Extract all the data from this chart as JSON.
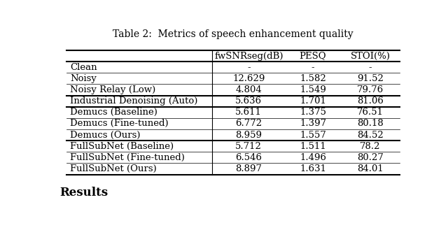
{
  "title": "Table 2:  Metrics of speech enhancement quality",
  "columns": [
    "",
    "fwSNRseg(dB)",
    "PESQ",
    "STOI(%)"
  ],
  "rows": [
    [
      "Clean",
      "-",
      "-",
      "-"
    ],
    [
      "Noisy",
      "12.629",
      "1.582",
      "91.52"
    ],
    [
      "Noisy Relay (Low)",
      "4.804",
      "1.549",
      "79.76"
    ],
    [
      "Industrial Denoising (Auto)",
      "5.636",
      "1.701",
      "81.06"
    ],
    [
      "Demucs (Baseline)",
      "5.611",
      "1.375",
      "76.51"
    ],
    [
      "Demucs (Fine-tuned)",
      "6.772",
      "1.397",
      "80.18"
    ],
    [
      "Demucs (Ours)",
      "8.959",
      "1.557",
      "84.52"
    ],
    [
      "FullSubNet (Baseline)",
      "5.712",
      "1.511",
      "78.2"
    ],
    [
      "FullSubNet (Fine-tuned)",
      "6.546",
      "1.496",
      "80.27"
    ],
    [
      "FullSubNet (Ours)",
      "8.897",
      "1.631",
      "84.01"
    ]
  ],
  "footer_text": "Results",
  "bg_color": "#ffffff",
  "text_color": "#000000",
  "font_size": 9.5,
  "title_font_size": 10.0,
  "footer_font_size": 12
}
